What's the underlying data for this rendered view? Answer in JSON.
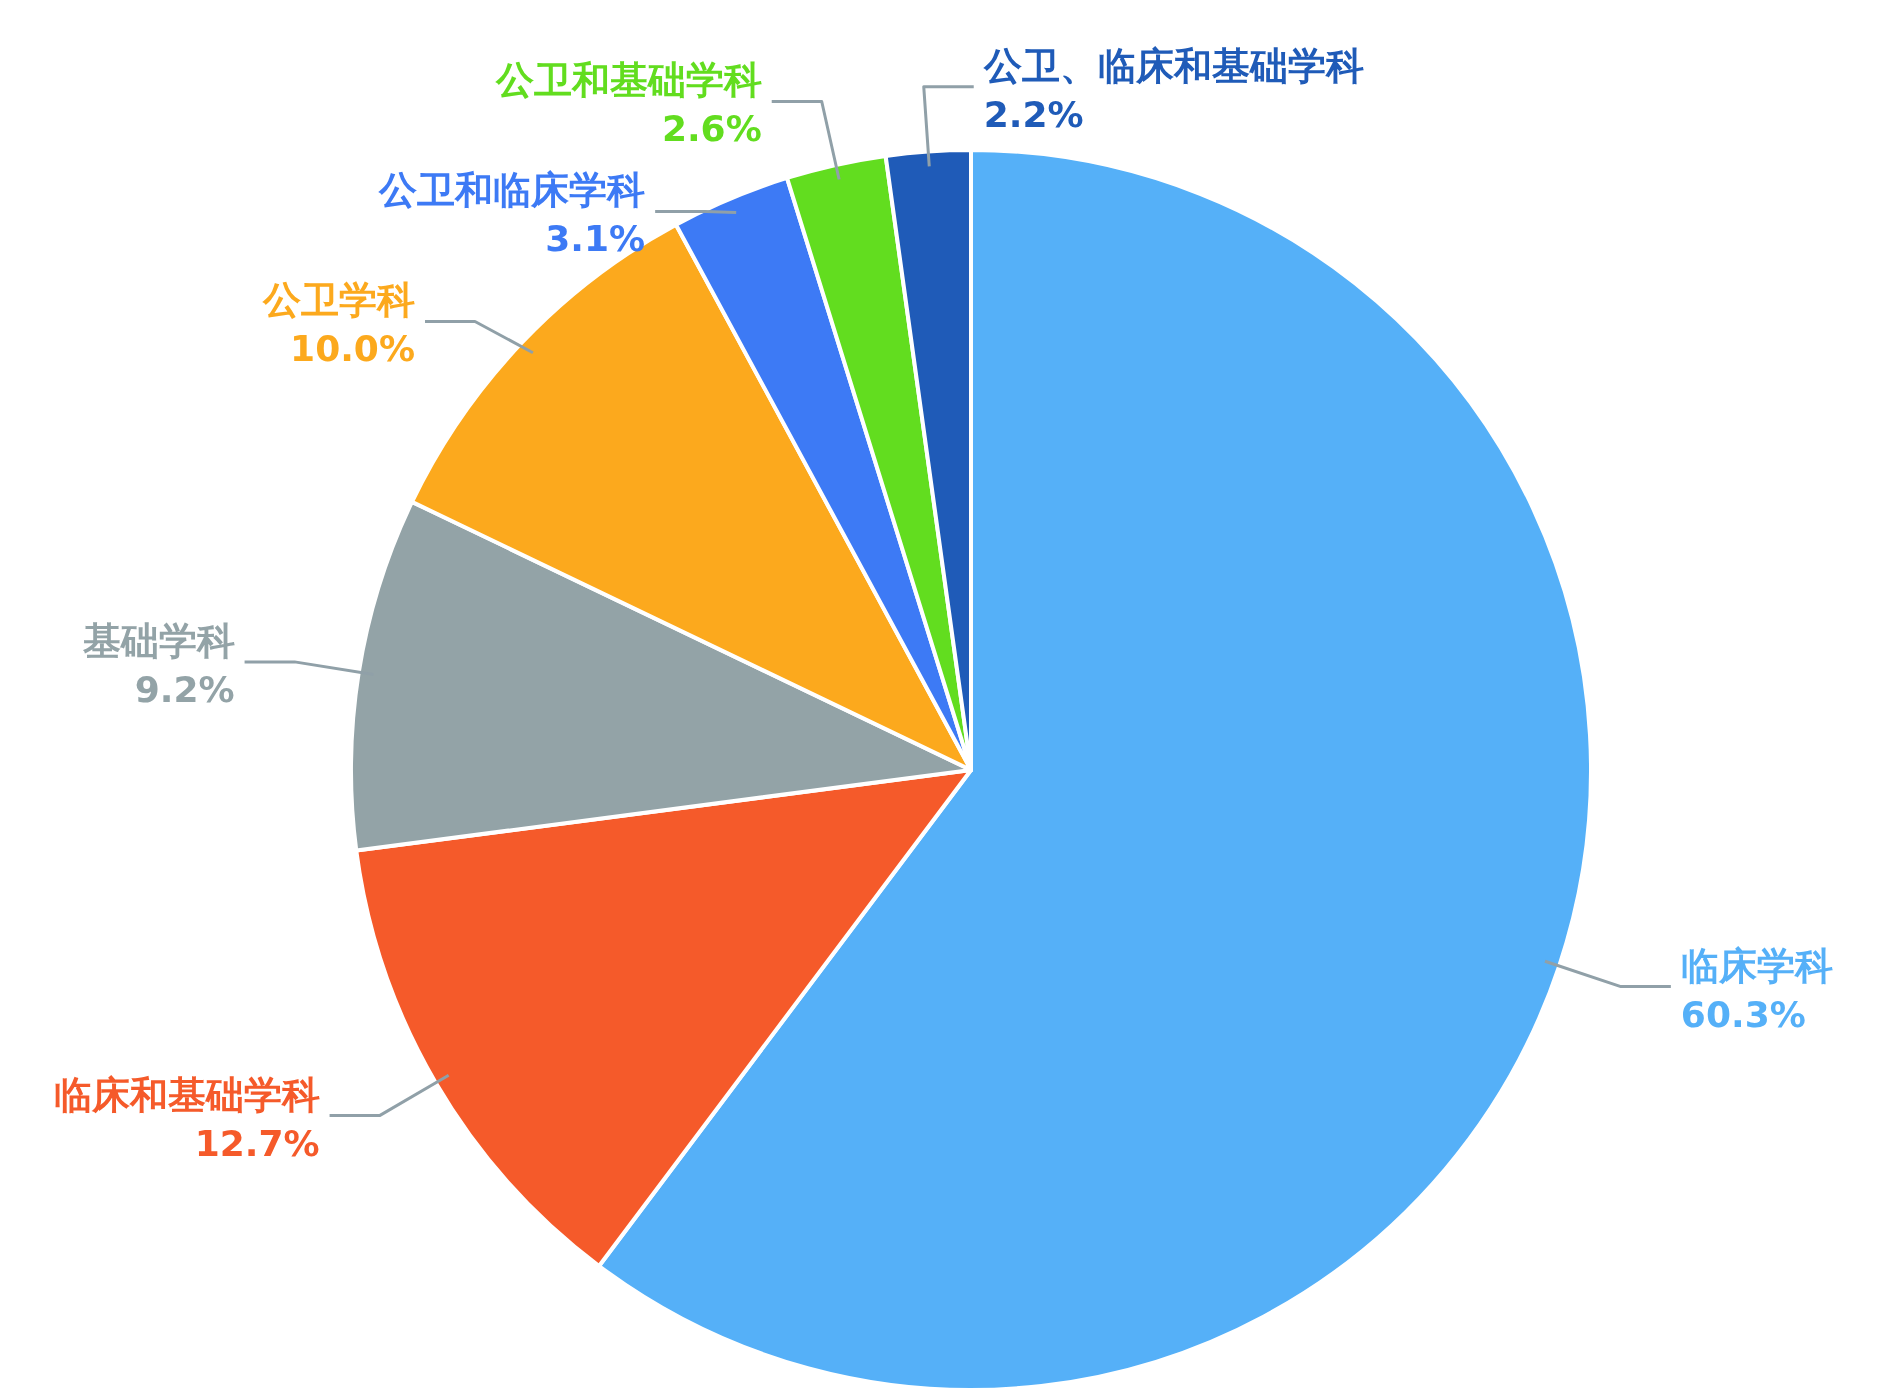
{
  "chart_data": {
    "type": "pie",
    "categories": [
      "临床学科",
      "临床和基础学科",
      "基础学科",
      "公卫学科",
      "公卫和临床学科",
      "公卫和基础学科",
      "公卫、临床和基础学科"
    ],
    "values": [
      60.3,
      12.7,
      9.2,
      10.0,
      3.1,
      2.6,
      2.2
    ],
    "colors": [
      "#55b0f8",
      "#f55a2a",
      "#93a3a7",
      "#fca91d",
      "#3d7af5",
      "#62dd1f",
      "#1f5bb8"
    ],
    "value_labels": [
      "60.3%",
      "12.7%",
      "9.2%",
      "10.0%",
      "3.1%",
      "2.6%",
      "2.2%"
    ]
  }
}
